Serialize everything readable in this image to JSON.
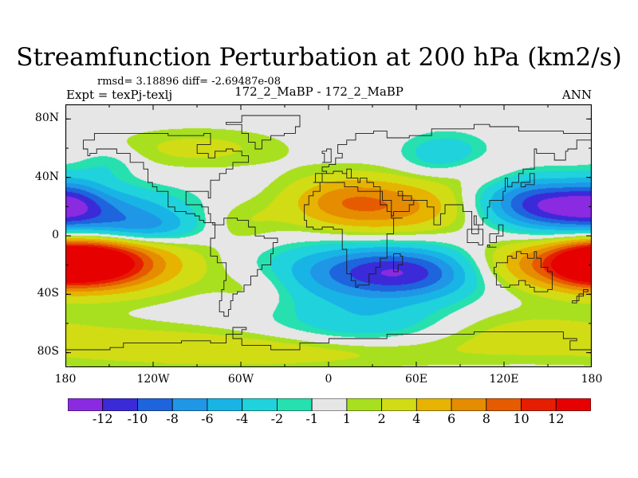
{
  "chart_data": {
    "type": "heatmap",
    "title": "Streamfunction Perturbation at 200 hPa (km2/s)",
    "stats": "rmsd= 3.18896 diff= -2.69487e-08",
    "left_label": "Expt = texPj-texlj",
    "center_label": "172_2_MaBP - 172_2_MaBP",
    "right_label": "ANN",
    "xlim": [
      -180,
      180
    ],
    "ylim": [
      -90,
      90
    ],
    "xticks": [
      {
        "value": -180,
        "label": "180"
      },
      {
        "value": -120,
        "label": "120W"
      },
      {
        "value": -60,
        "label": "60W"
      },
      {
        "value": 0,
        "label": "0"
      },
      {
        "value": 60,
        "label": "60E"
      },
      {
        "value": 120,
        "label": "120E"
      },
      {
        "value": 180,
        "label": "180"
      }
    ],
    "yticks": [
      {
        "value": 80,
        "label": "80N"
      },
      {
        "value": 40,
        "label": "40N"
      },
      {
        "value": 0,
        "label": "0"
      },
      {
        "value": -40,
        "label": "40S"
      },
      {
        "value": -80,
        "label": "80S"
      }
    ],
    "contour_levels": [
      -12,
      -10,
      -8,
      -6,
      -4,
      -2,
      -1,
      1,
      2,
      4,
      6,
      8,
      10,
      12
    ],
    "colorbar_labels": [
      "-12",
      "-10",
      "-8",
      "-6",
      "-4",
      "-2",
      "-1",
      "1",
      "2",
      "4",
      "6",
      "8",
      "10",
      "12"
    ],
    "colors": [
      "#8a2be2",
      "#3a2ad8",
      "#1e64dc",
      "#1f96e6",
      "#19b4e6",
      "#20d2dc",
      "#26e0b0",
      "#e6e6e6",
      "#a8e020",
      "#d2dc14",
      "#e6b400",
      "#e68c00",
      "#e65a00",
      "#e61e00",
      "#e60000"
    ],
    "features": [
      {
        "lon": -165,
        "lat": -18,
        "amp": 12,
        "slon": 25,
        "slat": 11
      },
      {
        "lon": -140,
        "lat": -20,
        "amp": 6,
        "slon": 40,
        "slat": 14
      },
      {
        "lon": -150,
        "lat": 15,
        "amp": -6,
        "slon": 40,
        "slat": 12
      },
      {
        "lon": -125,
        "lat": 5,
        "amp": -4,
        "slon": 25,
        "slat": 7
      },
      {
        "lon": 20,
        "lat": -25,
        "amp": -7,
        "slon": 45,
        "slat": 14
      },
      {
        "lon": 60,
        "lat": -25,
        "amp": -7,
        "slon": 35,
        "slat": 12
      },
      {
        "lon": 30,
        "lat": -60,
        "amp": -4,
        "slon": 45,
        "slat": 12
      },
      {
        "lon": 40,
        "lat": 20,
        "amp": 7,
        "slon": 40,
        "slat": 14
      },
      {
        "lon": 5,
        "lat": 25,
        "amp": 3,
        "slon": 25,
        "slat": 12
      },
      {
        "lon": 160,
        "lat": 20,
        "amp": -9,
        "slon": 30,
        "slat": 12
      },
      {
        "lon": 130,
        "lat": 25,
        "amp": -4,
        "slon": 25,
        "slat": 12
      },
      {
        "lon": 150,
        "lat": -20,
        "amp": 7,
        "slon": 40,
        "slat": 12
      },
      {
        "lon": 175,
        "lat": -20,
        "amp": 4,
        "slon": 15,
        "slat": 10
      },
      {
        "lon": 80,
        "lat": 55,
        "amp": -4,
        "slon": 20,
        "slat": 10
      },
      {
        "lon": -90,
        "lat": 60,
        "amp": 2.5,
        "slon": 45,
        "slat": 10
      },
      {
        "lon": -150,
        "lat": 50,
        "amp": -2,
        "slon": 15,
        "slat": 8
      },
      {
        "lon": -120,
        "lat": -75,
        "amp": 2.5,
        "slon": 70,
        "slat": 10
      },
      {
        "lon": 120,
        "lat": -65,
        "amp": 2.5,
        "slon": 60,
        "slat": 12
      },
      {
        "lon": -10,
        "lat": -80,
        "amp": 2.5,
        "slon": 80,
        "slat": 8
      },
      {
        "lon": 100,
        "lat": 45,
        "amp": 2,
        "slon": 20,
        "slat": 8
      },
      {
        "lon": -60,
        "lat": 10,
        "amp": 2,
        "slon": 20,
        "slat": 10
      },
      {
        "lon": -50,
        "lat": -35,
        "amp": 2,
        "slon": 20,
        "slat": 10
      },
      {
        "lon": -175,
        "lat": 25,
        "amp": -3,
        "slon": 15,
        "slat": 12
      }
    ],
    "coastlines": [
      [
        [
          -168,
          66
        ],
        [
          -160,
          70
        ],
        [
          -140,
          70
        ],
        [
          -125,
          70
        ],
        [
          -110,
          68
        ],
        [
          -95,
          68
        ],
        [
          -85,
          70
        ],
        [
          -80,
          63
        ],
        [
          -90,
          57
        ],
        [
          -82,
          53
        ],
        [
          -78,
          58
        ],
        [
          -70,
          60
        ],
        [
          -65,
          58
        ],
        [
          -60,
          55
        ],
        [
          -55,
          50
        ],
        [
          -65,
          45
        ],
        [
          -70,
          42
        ],
        [
          -75,
          38
        ],
        [
          -80,
          32
        ],
        [
          -81,
          26
        ],
        [
          -82,
          30
        ],
        [
          -90,
          30
        ],
        [
          -97,
          27
        ],
        [
          -97,
          22
        ],
        [
          -90,
          21
        ],
        [
          -87,
          20
        ],
        [
          -83,
          15
        ],
        [
          -80,
          9
        ],
        [
          -77,
          8
        ],
        [
          -79,
          9
        ],
        [
          -85,
          11
        ],
        [
          -88,
          14
        ],
        [
          -92,
          15
        ],
        [
          -97,
          16
        ],
        [
          -105,
          20
        ],
        [
          -110,
          24
        ],
        [
          -110,
          30
        ],
        [
          -115,
          30
        ],
        [
          -117,
          33
        ],
        [
          -121,
          36
        ],
        [
          -124,
          40
        ],
        [
          -124,
          46
        ],
        [
          -127,
          50
        ],
        [
          -135,
          57
        ],
        [
          -145,
          60
        ],
        [
          -152,
          59
        ],
        [
          -158,
          57
        ],
        [
          -163,
          55
        ],
        [
          -165,
          60
        ],
        [
          -168,
          66
        ]
      ],
      [
        [
          -77,
          8
        ],
        [
          -72,
          12
        ],
        [
          -62,
          11
        ],
        [
          -55,
          6
        ],
        [
          -50,
          0
        ],
        [
          -44,
          -2
        ],
        [
          -35,
          -5
        ],
        [
          -38,
          -12
        ],
        [
          -40,
          -20
        ],
        [
          -45,
          -23
        ],
        [
          -48,
          -28
        ],
        [
          -53,
          -33
        ],
        [
          -58,
          -38
        ],
        [
          -62,
          -40
        ],
        [
          -65,
          -45
        ],
        [
          -67,
          -50
        ],
        [
          -68,
          -55
        ],
        [
          -72,
          -52
        ],
        [
          -74,
          -45
        ],
        [
          -73,
          -37
        ],
        [
          -71,
          -30
        ],
        [
          -70,
          -18
        ],
        [
          -76,
          -14
        ],
        [
          -81,
          -6
        ],
        [
          -80,
          -1
        ],
        [
          -78,
          3
        ],
        [
          -77,
          8
        ]
      ],
      [
        [
          -17,
          15
        ],
        [
          -17,
          21
        ],
        [
          -13,
          27
        ],
        [
          -10,
          30
        ],
        [
          -6,
          36
        ],
        [
          0,
          36
        ],
        [
          10,
          37
        ],
        [
          11,
          33
        ],
        [
          20,
          31
        ],
        [
          30,
          31
        ],
        [
          33,
          30
        ],
        [
          37,
          24
        ],
        [
          43,
          12
        ],
        [
          51,
          12
        ],
        [
          45,
          2
        ],
        [
          40,
          -5
        ],
        [
          40,
          -15
        ],
        [
          35,
          -22
        ],
        [
          33,
          -26
        ],
        [
          28,
          -33
        ],
        [
          20,
          -35
        ],
        [
          18,
          -30
        ],
        [
          15,
          -26
        ],
        [
          12,
          -18
        ],
        [
          13,
          -10
        ],
        [
          9,
          -1
        ],
        [
          9,
          4
        ],
        [
          4,
          6
        ],
        [
          -5,
          5
        ],
        [
          -10,
          6
        ],
        [
          -15,
          10
        ],
        [
          -17,
          15
        ]
      ],
      [
        [
          -10,
          36
        ],
        [
          -9,
          43
        ],
        [
          -2,
          44
        ],
        [
          -5,
          48
        ],
        [
          0,
          49
        ],
        [
          5,
          53
        ],
        [
          9,
          57
        ],
        [
          6,
          62
        ],
        [
          12,
          66
        ],
        [
          18,
          70
        ],
        [
          30,
          71
        ],
        [
          40,
          67
        ],
        [
          55,
          69
        ],
        [
          70,
          73
        ],
        [
          80,
          73
        ],
        [
          100,
          77
        ],
        [
          110,
          74
        ],
        [
          130,
          72
        ],
        [
          140,
          72
        ],
        [
          160,
          70
        ],
        [
          170,
          70
        ],
        [
          180,
          68
        ],
        [
          180,
          65
        ],
        [
          170,
          60
        ],
        [
          163,
          58
        ],
        [
          162,
          52
        ],
        [
          155,
          57
        ],
        [
          143,
          59
        ],
        [
          140,
          53
        ],
        [
          141,
          46
        ],
        [
          133,
          42
        ],
        [
          130,
          37
        ],
        [
          126,
          34
        ],
        [
          122,
          39
        ],
        [
          121,
          31
        ],
        [
          119,
          25
        ],
        [
          110,
          20
        ],
        [
          108,
          16
        ],
        [
          109,
          12
        ],
        [
          105,
          8
        ],
        [
          101,
          13
        ],
        [
          100,
          7
        ],
        [
          103,
          2
        ],
        [
          98,
          8
        ],
        [
          98,
          16
        ],
        [
          92,
          21
        ],
        [
          88,
          22
        ],
        [
          80,
          15
        ],
        [
          77,
          8
        ],
        [
          72,
          20
        ],
        [
          67,
          25
        ],
        [
          58,
          25
        ],
        [
          56,
          27
        ],
        [
          50,
          30
        ],
        [
          48,
          28
        ],
        [
          51,
          24
        ],
        [
          56,
          24
        ],
        [
          59,
          22
        ],
        [
          55,
          17
        ],
        [
          45,
          13
        ],
        [
          43,
          16
        ],
        [
          40,
          21
        ],
        [
          35,
          28
        ],
        [
          35,
          33
        ],
        [
          30,
          36
        ],
        [
          27,
          37
        ],
        [
          26,
          40
        ],
        [
          22,
          37
        ],
        [
          20,
          40
        ],
        [
          13,
          45
        ],
        [
          16,
          40
        ],
        [
          12,
          42
        ],
        [
          9,
          44
        ],
        [
          4,
          43
        ],
        [
          -4,
          37
        ],
        [
          -10,
          36
        ]
      ],
      [
        [
          114,
          -22
        ],
        [
          113,
          -26
        ],
        [
          115,
          -34
        ],
        [
          118,
          -35
        ],
        [
          124,
          -34
        ],
        [
          130,
          -31
        ],
        [
          135,
          -34
        ],
        [
          138,
          -35
        ],
        [
          141,
          -38
        ],
        [
          146,
          -39
        ],
        [
          150,
          -37
        ],
        [
          153,
          -30
        ],
        [
          153,
          -25
        ],
        [
          150,
          -22
        ],
        [
          146,
          -19
        ],
        [
          145,
          -15
        ],
        [
          142,
          -11
        ],
        [
          141,
          -15
        ],
        [
          136,
          -12
        ],
        [
          132,
          -11
        ],
        [
          129,
          -15
        ],
        [
          125,
          -14
        ],
        [
          122,
          -18
        ],
        [
          114,
          -22
        ]
      ],
      [
        [
          -45,
          60
        ],
        [
          -50,
          64
        ],
        [
          -55,
          70
        ],
        [
          -60,
          76
        ],
        [
          -70,
          78
        ],
        [
          -60,
          82
        ],
        [
          -40,
          83
        ],
        [
          -25,
          82
        ],
        [
          -20,
          75
        ],
        [
          -22,
          70
        ],
        [
          -30,
          68
        ],
        [
          -40,
          65
        ],
        [
          -45,
          60
        ]
      ],
      [
        [
          -180,
          -78
        ],
        [
          -150,
          -77
        ],
        [
          -140,
          -74
        ],
        [
          -120,
          -73
        ],
        [
          -100,
          -72
        ],
        [
          -80,
          -73
        ],
        [
          -70,
          -68
        ],
        [
          -60,
          -64
        ],
        [
          -57,
          -63
        ],
        [
          -65,
          -70
        ],
        [
          -60,
          -75
        ],
        [
          -40,
          -78
        ],
        [
          -20,
          -74
        ],
        [
          0,
          -70
        ],
        [
          20,
          -70
        ],
        [
          40,
          -68
        ],
        [
          60,
          -67
        ],
        [
          80,
          -67
        ],
        [
          100,
          -66
        ],
        [
          120,
          -66
        ],
        [
          140,
          -66
        ],
        [
          160,
          -70
        ],
        [
          170,
          -72
        ],
        [
          165,
          -78
        ],
        [
          180,
          -79
        ]
      ],
      [
        [
          -5,
          50
        ],
        [
          -3,
          53
        ],
        [
          -3,
          56
        ],
        [
          -5,
          58
        ],
        [
          -2,
          59
        ],
        [
          1,
          53
        ],
        [
          2,
          51
        ],
        [
          -5,
          50
        ]
      ],
      [
        [
          44,
          -12
        ],
        [
          49,
          -14
        ],
        [
          50,
          -20
        ],
        [
          47,
          -25
        ],
        [
          44,
          -23
        ],
        [
          44,
          -12
        ]
      ],
      [
        [
          131,
          34
        ],
        [
          135,
          35
        ],
        [
          140,
          36
        ],
        [
          141,
          40
        ],
        [
          140,
          42
        ],
        [
          137,
          37
        ],
        [
          131,
          34
        ]
      ],
      [
        [
          95,
          5
        ],
        [
          105,
          -6
        ],
        [
          102,
          -4
        ],
        [
          95,
          5
        ]
      ],
      [
        [
          109,
          -7
        ],
        [
          114,
          -8
        ],
        [
          110,
          -6
        ],
        [
          109,
          -7
        ]
      ],
      [
        [
          110,
          1
        ],
        [
          117,
          7
        ],
        [
          119,
          0
        ],
        [
          115,
          -4
        ],
        [
          110,
          1
        ]
      ],
      [
        [
          166,
          -45
        ],
        [
          172,
          -40
        ],
        [
          175,
          -37
        ],
        [
          178,
          -38
        ],
        [
          174,
          -42
        ],
        [
          170,
          -46
        ],
        [
          166,
          -45
        ]
      ]
    ]
  }
}
